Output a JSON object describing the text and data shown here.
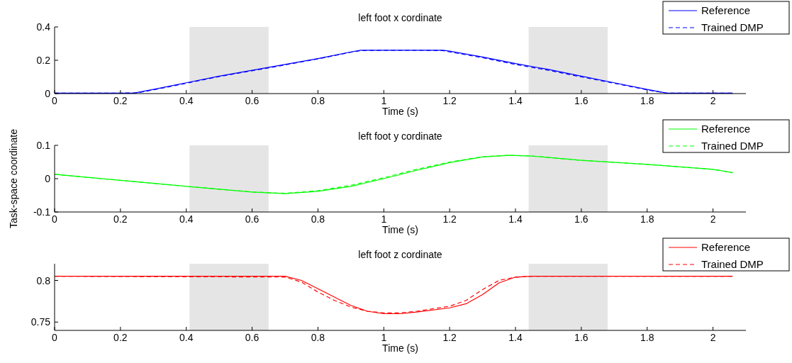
{
  "chart_data": [
    {
      "type": "line",
      "title": "left foot x cordinate",
      "xlabel": "Time (s)",
      "xlim": [
        0,
        2.1
      ],
      "xticks": [
        0,
        0.2,
        0.4,
        0.6,
        0.8,
        1,
        1.2,
        1.4,
        1.6,
        1.8,
        2
      ],
      "ylim": [
        0,
        0.4
      ],
      "yticks": [
        0,
        0.2,
        0.4
      ],
      "legend": "top right",
      "grid": false,
      "bands": [
        {
          "axis": "x",
          "from": 0.41,
          "to": 0.65,
          "color": "#e5e5e5"
        },
        {
          "axis": "x",
          "from": 1.44,
          "to": 1.68,
          "color": "#e5e5e5"
        }
      ],
      "series": [
        {
          "name": "Reference",
          "color": "#0000ff",
          "line_style": "solid",
          "x": [
            0,
            0.2,
            0.24,
            0.3,
            0.4,
            0.5,
            0.6,
            0.7,
            0.8,
            0.9,
            0.93,
            1.0,
            1.1,
            1.18,
            1.2,
            1.3,
            1.4,
            1.5,
            1.6,
            1.7,
            1.8,
            1.86,
            2.06
          ],
          "values": [
            0.003,
            0.003,
            0.003,
            0.025,
            0.065,
            0.105,
            0.14,
            0.175,
            0.21,
            0.25,
            0.26,
            0.26,
            0.26,
            0.26,
            0.255,
            0.22,
            0.18,
            0.145,
            0.105,
            0.065,
            0.025,
            0.003,
            0.003
          ]
        },
        {
          "name": "Trained DMP",
          "color": "#0000ff",
          "line_style": "dashed",
          "x": [
            0,
            0.2,
            0.25,
            0.3,
            0.4,
            0.5,
            0.6,
            0.7,
            0.8,
            0.9,
            0.93,
            1.0,
            1.1,
            1.18,
            1.2,
            1.3,
            1.4,
            1.5,
            1.6,
            1.7,
            1.8,
            1.86,
            2.06
          ],
          "values": [
            0.003,
            0.003,
            0.004,
            0.022,
            0.062,
            0.102,
            0.137,
            0.172,
            0.208,
            0.248,
            0.258,
            0.26,
            0.26,
            0.258,
            0.25,
            0.215,
            0.175,
            0.14,
            0.1,
            0.062,
            0.022,
            0.003,
            0.003
          ]
        }
      ]
    },
    {
      "type": "line",
      "title": "left foot y cordinate",
      "xlabel": "Time (s)",
      "ylabel": "Task-space coordinate",
      "xlim": [
        0,
        2.1
      ],
      "xticks": [
        0,
        0.2,
        0.4,
        0.6,
        0.8,
        1,
        1.2,
        1.4,
        1.6,
        1.8,
        2
      ],
      "ylim": [
        -0.1,
        0.1
      ],
      "yticks": [
        -0.1,
        0,
        0.1
      ],
      "legend": "top right",
      "grid": false,
      "bands": [
        {
          "axis": "x",
          "from": 0.41,
          "to": 0.65,
          "color": "#e5e5e5"
        },
        {
          "axis": "x",
          "from": 1.44,
          "to": 1.68,
          "color": "#e5e5e5"
        }
      ],
      "series": [
        {
          "name": "Reference",
          "color": "#00ff00",
          "line_style": "solid",
          "x": [
            0,
            0.2,
            0.4,
            0.6,
            0.7,
            0.8,
            0.9,
            1.0,
            1.1,
            1.2,
            1.3,
            1.38,
            1.45,
            1.6,
            1.8,
            2.0,
            2.06
          ],
          "values": [
            0.013,
            -0.005,
            -0.023,
            -0.04,
            -0.045,
            -0.038,
            -0.023,
            0,
            0.025,
            0.048,
            0.065,
            0.07,
            0.068,
            0.055,
            0.043,
            0.028,
            0.018
          ]
        },
        {
          "name": "Trained DMP",
          "color": "#00ff00",
          "line_style": "dashed",
          "x": [
            0,
            0.2,
            0.4,
            0.6,
            0.7,
            0.8,
            0.9,
            1.0,
            1.1,
            1.2,
            1.3,
            1.38,
            1.45,
            1.6,
            1.8,
            2.0,
            2.06
          ],
          "values": [
            0.013,
            -0.005,
            -0.023,
            -0.04,
            -0.044,
            -0.036,
            -0.02,
            0.003,
            0.028,
            0.05,
            0.066,
            0.07,
            0.068,
            0.055,
            0.043,
            0.028,
            0.018
          ]
        }
      ]
    },
    {
      "type": "line",
      "title": "left foot z cordinate",
      "xlabel": "Time (s)",
      "xlim": [
        0,
        2.1
      ],
      "xticks": [
        0,
        0.2,
        0.4,
        0.6,
        0.8,
        1,
        1.2,
        1.4,
        1.6,
        1.8,
        2
      ],
      "ylim": [
        0.74,
        0.82
      ],
      "yticks": [
        0.75,
        0.8
      ],
      "legend": "top right",
      "grid": false,
      "bands": [
        {
          "axis": "x",
          "from": 0.41,
          "to": 0.65,
          "color": "#e5e5e5"
        },
        {
          "axis": "x",
          "from": 1.44,
          "to": 1.68,
          "color": "#e5e5e5"
        }
      ],
      "series": [
        {
          "name": "Reference",
          "color": "#ff0000",
          "line_style": "solid",
          "x": [
            0,
            0.7,
            0.75,
            0.8,
            0.85,
            0.9,
            0.95,
            1.0,
            1.05,
            1.1,
            1.2,
            1.25,
            1.3,
            1.35,
            1.4,
            1.45,
            2.06
          ],
          "values": [
            0.805,
            0.805,
            0.8,
            0.79,
            0.78,
            0.77,
            0.763,
            0.76,
            0.76,
            0.762,
            0.767,
            0.772,
            0.783,
            0.797,
            0.804,
            0.805,
            0.805
          ]
        },
        {
          "name": "Trained DMP",
          "color": "#ff0000",
          "line_style": "dashed",
          "x": [
            0,
            0.7,
            0.75,
            0.8,
            0.85,
            0.9,
            0.95,
            1.0,
            1.05,
            1.1,
            1.2,
            1.25,
            1.3,
            1.35,
            1.4,
            1.45,
            2.06
          ],
          "values": [
            0.805,
            0.804,
            0.798,
            0.786,
            0.776,
            0.768,
            0.763,
            0.761,
            0.761,
            0.763,
            0.769,
            0.776,
            0.789,
            0.8,
            0.804,
            0.805,
            0.805
          ]
        }
      ]
    }
  ]
}
